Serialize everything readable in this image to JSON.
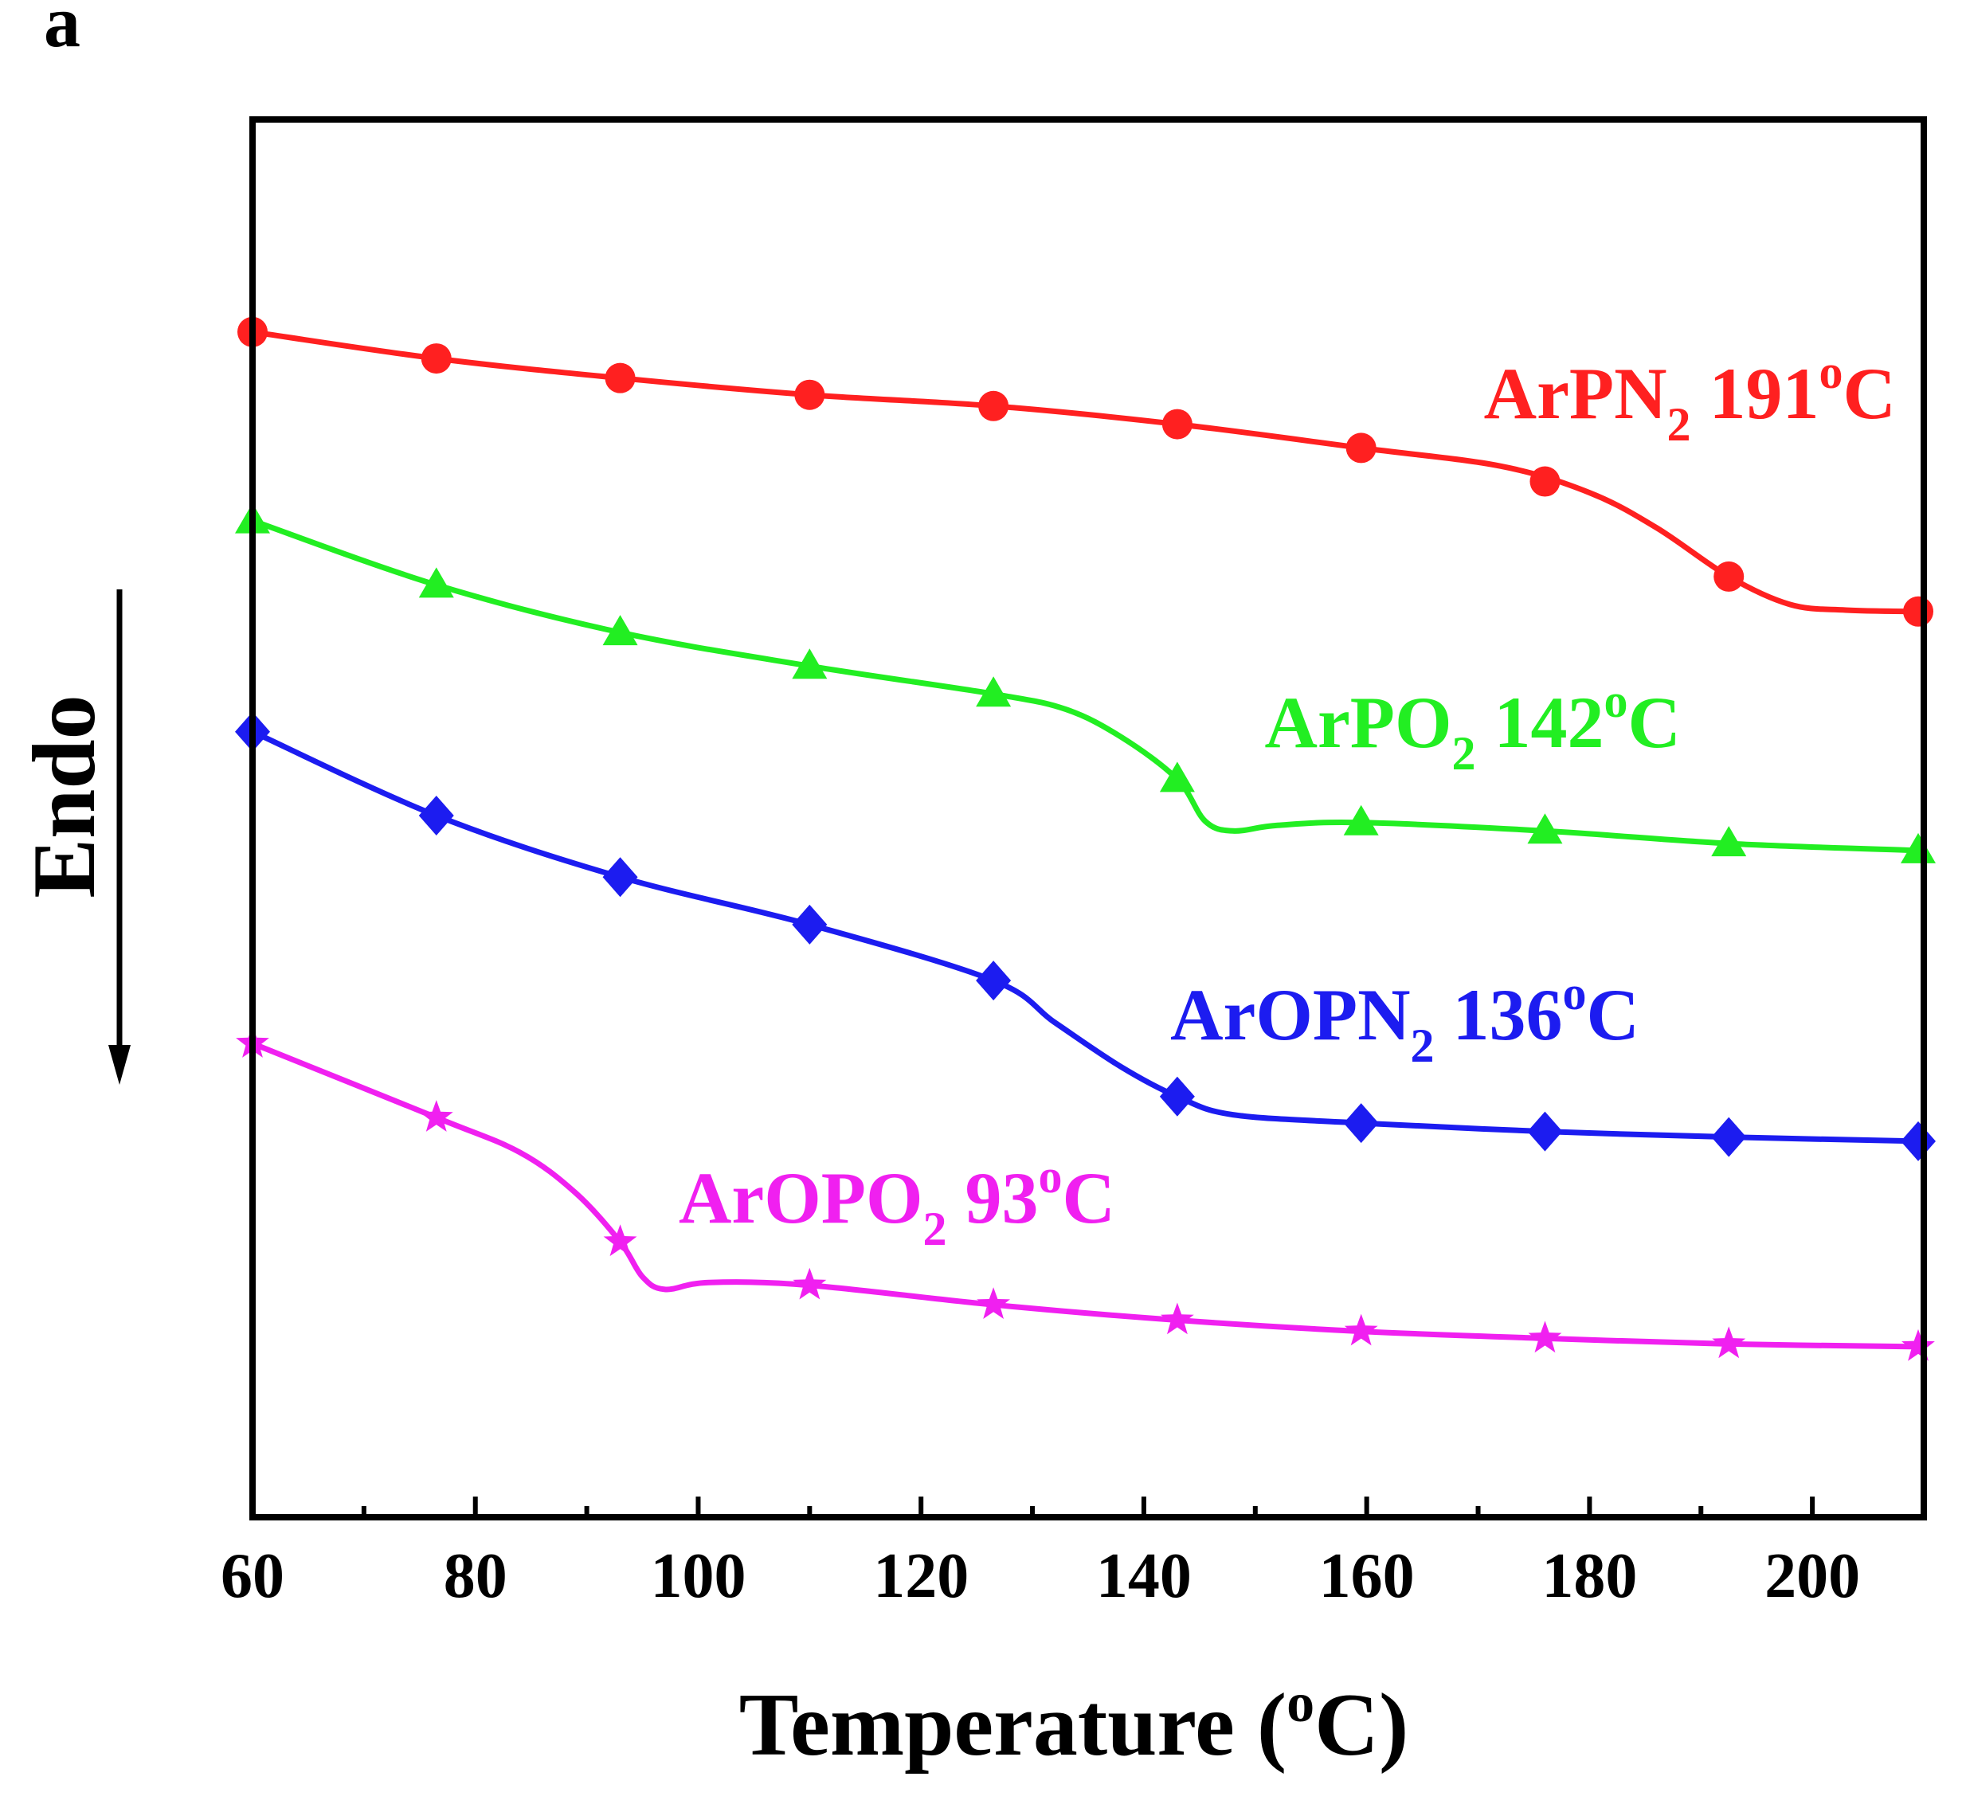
{
  "panel_label": "a",
  "chart_data": {
    "type": "line",
    "title": "",
    "xlabel": "Temperature (",
    "xlabel_sup": "o",
    "xlabel_tail": "C)",
    "ylabel": "Endo",
    "xlim": [
      60,
      210
    ],
    "ylim": [
      0,
      100
    ],
    "x_major_ticks": [
      60,
      80,
      100,
      120,
      140,
      160,
      180,
      200
    ],
    "x_tick_labels": [
      "60",
      "80",
      "100",
      "120",
      "140",
      "160",
      "180",
      "200"
    ],
    "x_minor_ticks": [
      70,
      90,
      110,
      130,
      150,
      170,
      190
    ],
    "series": [
      {
        "name": "ArPN2",
        "color": "#ff2020",
        "marker": "circle",
        "label_main": "ArPN",
        "label_sub": "2",
        "label_temp": " 191",
        "label_sup": "o",
        "label_unit": "C",
        "marker_x": [
          60,
          76.5,
          93,
          110,
          126.5,
          143,
          159.5,
          176,
          192.5,
          209.5
        ],
        "marker_y": [
          84.8,
          82.9,
          81.5,
          80.3,
          79.5,
          78.2,
          76.5,
          74.1,
          67.3,
          64.8
        ],
        "curve_x": [
          60,
          76.5,
          93,
          110,
          126.5,
          143,
          159.5,
          172,
          180,
          186,
          192.5,
          198,
          203,
          209.5
        ],
        "curve_y": [
          84.8,
          82.9,
          81.5,
          80.3,
          79.5,
          78.2,
          76.5,
          75.2,
          73.3,
          70.8,
          67.3,
          65.3,
          64.9,
          64.8
        ]
      },
      {
        "name": "ArPO2",
        "color": "#22ee22",
        "marker": "triangle",
        "label_main": "ArPO",
        "label_sub": "2",
        "label_temp": " 142",
        "label_sup": "o",
        "label_unit": "C",
        "marker_x": [
          60,
          76.5,
          93,
          110,
          126.5,
          143,
          159.5,
          176,
          192.5,
          209.5
        ],
        "marker_y": [
          71.3,
          66.7,
          63.3,
          60.9,
          58.9,
          52.8,
          49.7,
          49.1,
          48.2,
          47.7
        ],
        "curve_x": [
          60,
          76.5,
          93,
          110,
          126.5,
          133,
          138,
          143,
          145.5,
          148,
          152,
          159.5,
          176,
          192.5,
          209.5
        ],
        "curve_y": [
          71.3,
          66.7,
          63.3,
          60.9,
          58.9,
          57.8,
          55.8,
          52.8,
          49.8,
          49.1,
          49.5,
          49.7,
          49.1,
          48.2,
          47.7
        ]
      },
      {
        "name": "ArOPN2",
        "color": "#1c1cf0",
        "marker": "diamond",
        "label_main": "ArOPN",
        "label_sub": "2",
        "label_temp": " 136",
        "label_sup": "o",
        "label_unit": "C",
        "marker_x": [
          60,
          76.5,
          93,
          110,
          126.5,
          143,
          159.5,
          176,
          192.5,
          209.5
        ],
        "marker_y": [
          56.2,
          50.2,
          45.8,
          42.4,
          38.4,
          30.1,
          28.2,
          27.6,
          27.2,
          26.9
        ],
        "curve_x": [
          60,
          76.5,
          93,
          110,
          126.5,
          132,
          138,
          143,
          148,
          159.5,
          176,
          192.5,
          209.5
        ],
        "curve_y": [
          56.2,
          50.2,
          45.8,
          42.4,
          38.4,
          35.4,
          32.2,
          30.1,
          28.8,
          28.2,
          27.6,
          27.2,
          26.9
        ]
      },
      {
        "name": "ArOPO2",
        "color": "#f020f0",
        "marker": "star",
        "label_main": "ArOPO",
        "label_sub": "2",
        "label_temp": " 93",
        "label_sup": "o",
        "label_unit": "C",
        "marker_x": [
          60,
          76.5,
          93,
          110,
          126.5,
          143,
          159.5,
          176,
          192.5,
          209.5
        ],
        "marker_y": [
          33.9,
          28.6,
          19.7,
          16.6,
          15.2,
          14.1,
          13.3,
          12.8,
          12.4,
          12.2
        ],
        "curve_x": [
          60,
          76.5,
          84,
          89,
          93,
          95,
          97,
          101,
          110,
          126.5,
          143,
          159.5,
          176,
          192.5,
          209.5
        ],
        "curve_y": [
          33.9,
          28.6,
          26.1,
          23.2,
          19.7,
          17.2,
          16.3,
          16.8,
          16.6,
          15.2,
          14.1,
          13.3,
          12.8,
          12.4,
          12.2
        ]
      }
    ]
  }
}
